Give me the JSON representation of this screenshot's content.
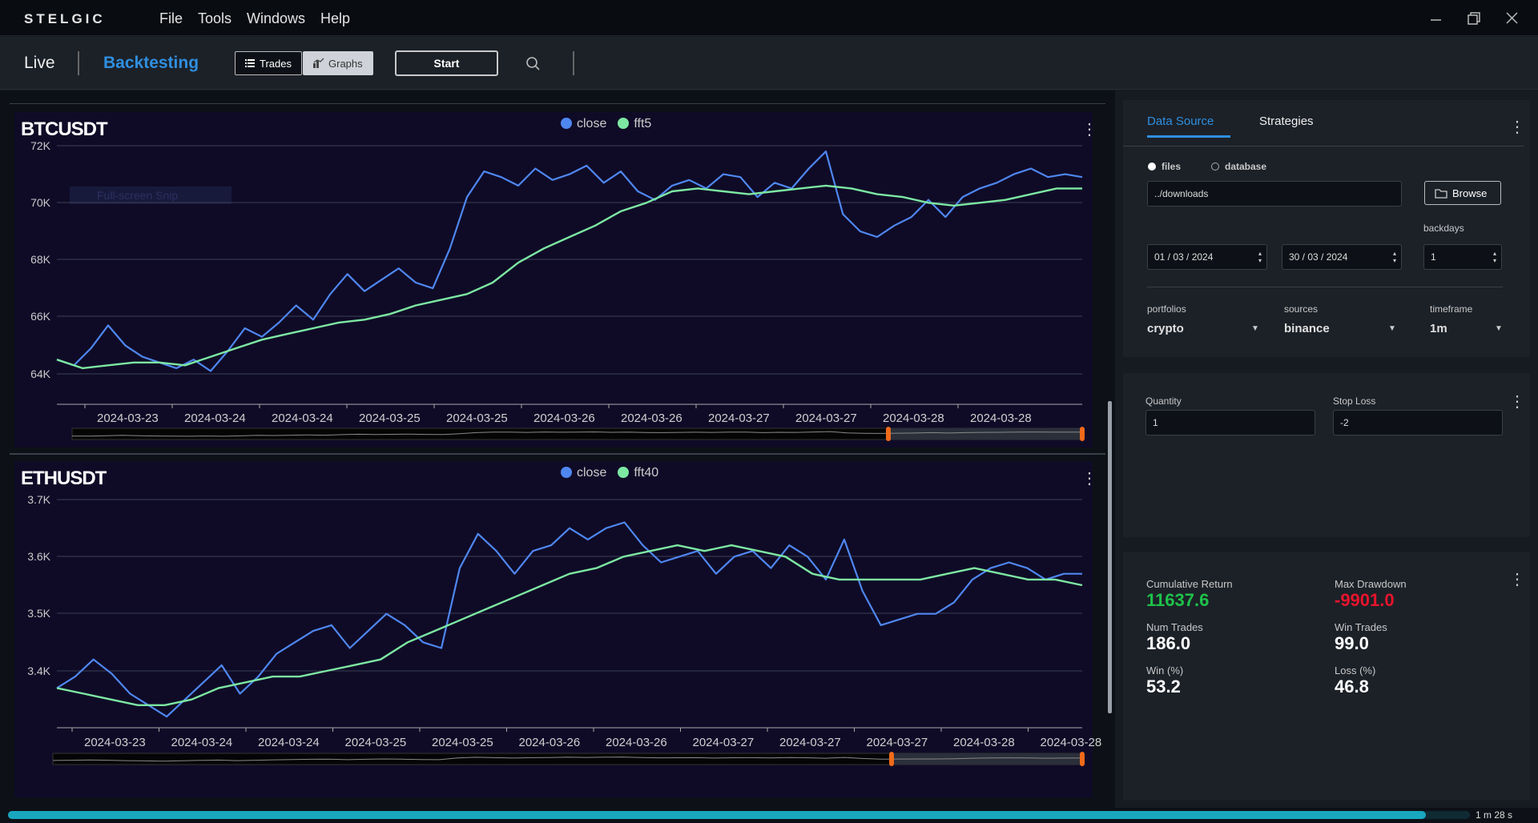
{
  "app": {
    "logo": "STELGIC",
    "menu": [
      "File",
      "Tools",
      "Windows",
      "Help"
    ]
  },
  "toolbar": {
    "live": "Live",
    "backtesting": "Backtesting",
    "trades": "Trades",
    "graphs": "Graphs",
    "start": "Start"
  },
  "charts": [
    {
      "symbol": "BTCUSDT",
      "series_names": [
        "close",
        "fft5"
      ],
      "y_ticks": [
        "72K",
        "70K",
        "68K",
        "66K",
        "64K"
      ],
      "x_ticks": [
        "2024-03-23",
        "2024-03-24",
        "2024-03-24",
        "2024-03-25",
        "2024-03-25",
        "2024-03-26",
        "2024-03-26",
        "2024-03-27",
        "2024-03-27",
        "2024-03-28",
        "2024-03-28"
      ],
      "ghost": "Full-screen Snip"
    },
    {
      "symbol": "ETHUSDT",
      "series_names": [
        "close",
        "fft40"
      ],
      "y_ticks": [
        "3.7K",
        "3.6K",
        "3.5K",
        "3.4K"
      ],
      "x_ticks": [
        "2024-03-23",
        "2024-03-24",
        "2024-03-24",
        "2024-03-25",
        "2024-03-25",
        "2024-03-26",
        "2024-03-26",
        "2024-03-27",
        "2024-03-27",
        "2024-03-27",
        "2024-03-28",
        "2024-03-28"
      ]
    }
  ],
  "chart_data": [
    {
      "type": "line",
      "title": "BTCUSDT",
      "ylim": [
        64000,
        72000
      ],
      "series": [
        {
          "name": "close",
          "color": "#4f87f0",
          "values": [
            64500,
            64300,
            64900,
            65700,
            65000,
            64600,
            64400,
            64200,
            64500,
            64100,
            64800,
            65600,
            65300,
            65800,
            66400,
            65900,
            66800,
            67500,
            66900,
            67300,
            67700,
            67200,
            67000,
            68400,
            70200,
            71100,
            70900,
            70600,
            71200,
            70800,
            71000,
            71300,
            70700,
            71100,
            70400,
            70100,
            70600,
            70800,
            70500,
            71000,
            70900,
            70200,
            70700,
            70500,
            71200,
            71800,
            69600,
            69000,
            68800,
            69200,
            69500,
            70100,
            69500,
            70200,
            70500,
            70700,
            71000,
            71200,
            70900,
            71000,
            70900
          ]
        },
        {
          "name": "fft5",
          "color": "#7de8a2",
          "values": [
            64500,
            64200,
            64300,
            64400,
            64400,
            64300,
            64600,
            64900,
            65200,
            65400,
            65600,
            65800,
            65900,
            66100,
            66400,
            66600,
            66800,
            67200,
            67900,
            68400,
            68800,
            69200,
            69700,
            70000,
            70400,
            70500,
            70400,
            70300,
            70400,
            70500,
            70600,
            70500,
            70300,
            70200,
            70000,
            69900,
            70000,
            70100,
            70300,
            70500,
            70500
          ]
        }
      ]
    },
    {
      "type": "line",
      "title": "ETHUSDT",
      "ylim": [
        3300,
        3700
      ],
      "series": [
        {
          "name": "close",
          "color": "#4f87f0",
          "values": [
            3370,
            3390,
            3420,
            3395,
            3360,
            3340,
            3320,
            3350,
            3380,
            3410,
            3360,
            3390,
            3430,
            3450,
            3470,
            3480,
            3440,
            3470,
            3500,
            3480,
            3450,
            3440,
            3580,
            3640,
            3610,
            3570,
            3610,
            3620,
            3650,
            3630,
            3650,
            3660,
            3620,
            3590,
            3600,
            3610,
            3570,
            3600,
            3610,
            3580,
            3620,
            3600,
            3560,
            3630,
            3540,
            3480,
            3490,
            3500,
            3500,
            3520,
            3560,
            3580,
            3590,
            3580,
            3560,
            3570,
            3570
          ]
        },
        {
          "name": "fft40",
          "color": "#7de8a2",
          "values": [
            3370,
            3360,
            3350,
            3340,
            3340,
            3350,
            3370,
            3380,
            3390,
            3390,
            3400,
            3410,
            3420,
            3450,
            3470,
            3490,
            3510,
            3530,
            3550,
            3570,
            3580,
            3600,
            3610,
            3620,
            3610,
            3620,
            3610,
            3600,
            3570,
            3560,
            3560,
            3560,
            3560,
            3570,
            3580,
            3570,
            3560,
            3560,
            3550
          ]
        }
      ]
    }
  ],
  "sidepanel": {
    "tabs": [
      "Data Source",
      "Strategies"
    ],
    "radio_files": "files",
    "radio_database": "database",
    "path": "../downloads",
    "browse": "Browse",
    "backdays_label": "backdays",
    "backdays": "1",
    "date_from": "01 / 03 / 2024",
    "date_to": "30 / 03 / 2024",
    "portfolios_label": "portfolios",
    "portfolios": "crypto",
    "sources_label": "sources",
    "sources": "binance",
    "timeframe_label": "timeframe",
    "timeframe": "1m"
  },
  "orders": {
    "quantity_label": "Quantity",
    "quantity": "1",
    "stop_loss_label": "Stop Loss",
    "stop_loss": "-2"
  },
  "metrics": {
    "cum_return_label": "Cumulative Return",
    "cum_return": "11637.6",
    "max_drawdown_label": "Max Drawdown",
    "max_drawdown": "-9901.0",
    "num_trades_label": "Num Trades",
    "num_trades": "186.0",
    "win_trades_label": "Win Trades",
    "win_trades": "99.0",
    "win_pct_label": "Win (%)",
    "win_pct": "53.2",
    "loss_pct_label": "Loss (%)",
    "loss_pct": "46.8"
  },
  "status": {
    "elapsed": "1 m 28 s",
    "progress": 0.97
  },
  "colors": {
    "positive": "#1fc24a",
    "negative": "#e8142c",
    "accent": "#2f8fe0",
    "progress": "#19a7c0"
  }
}
